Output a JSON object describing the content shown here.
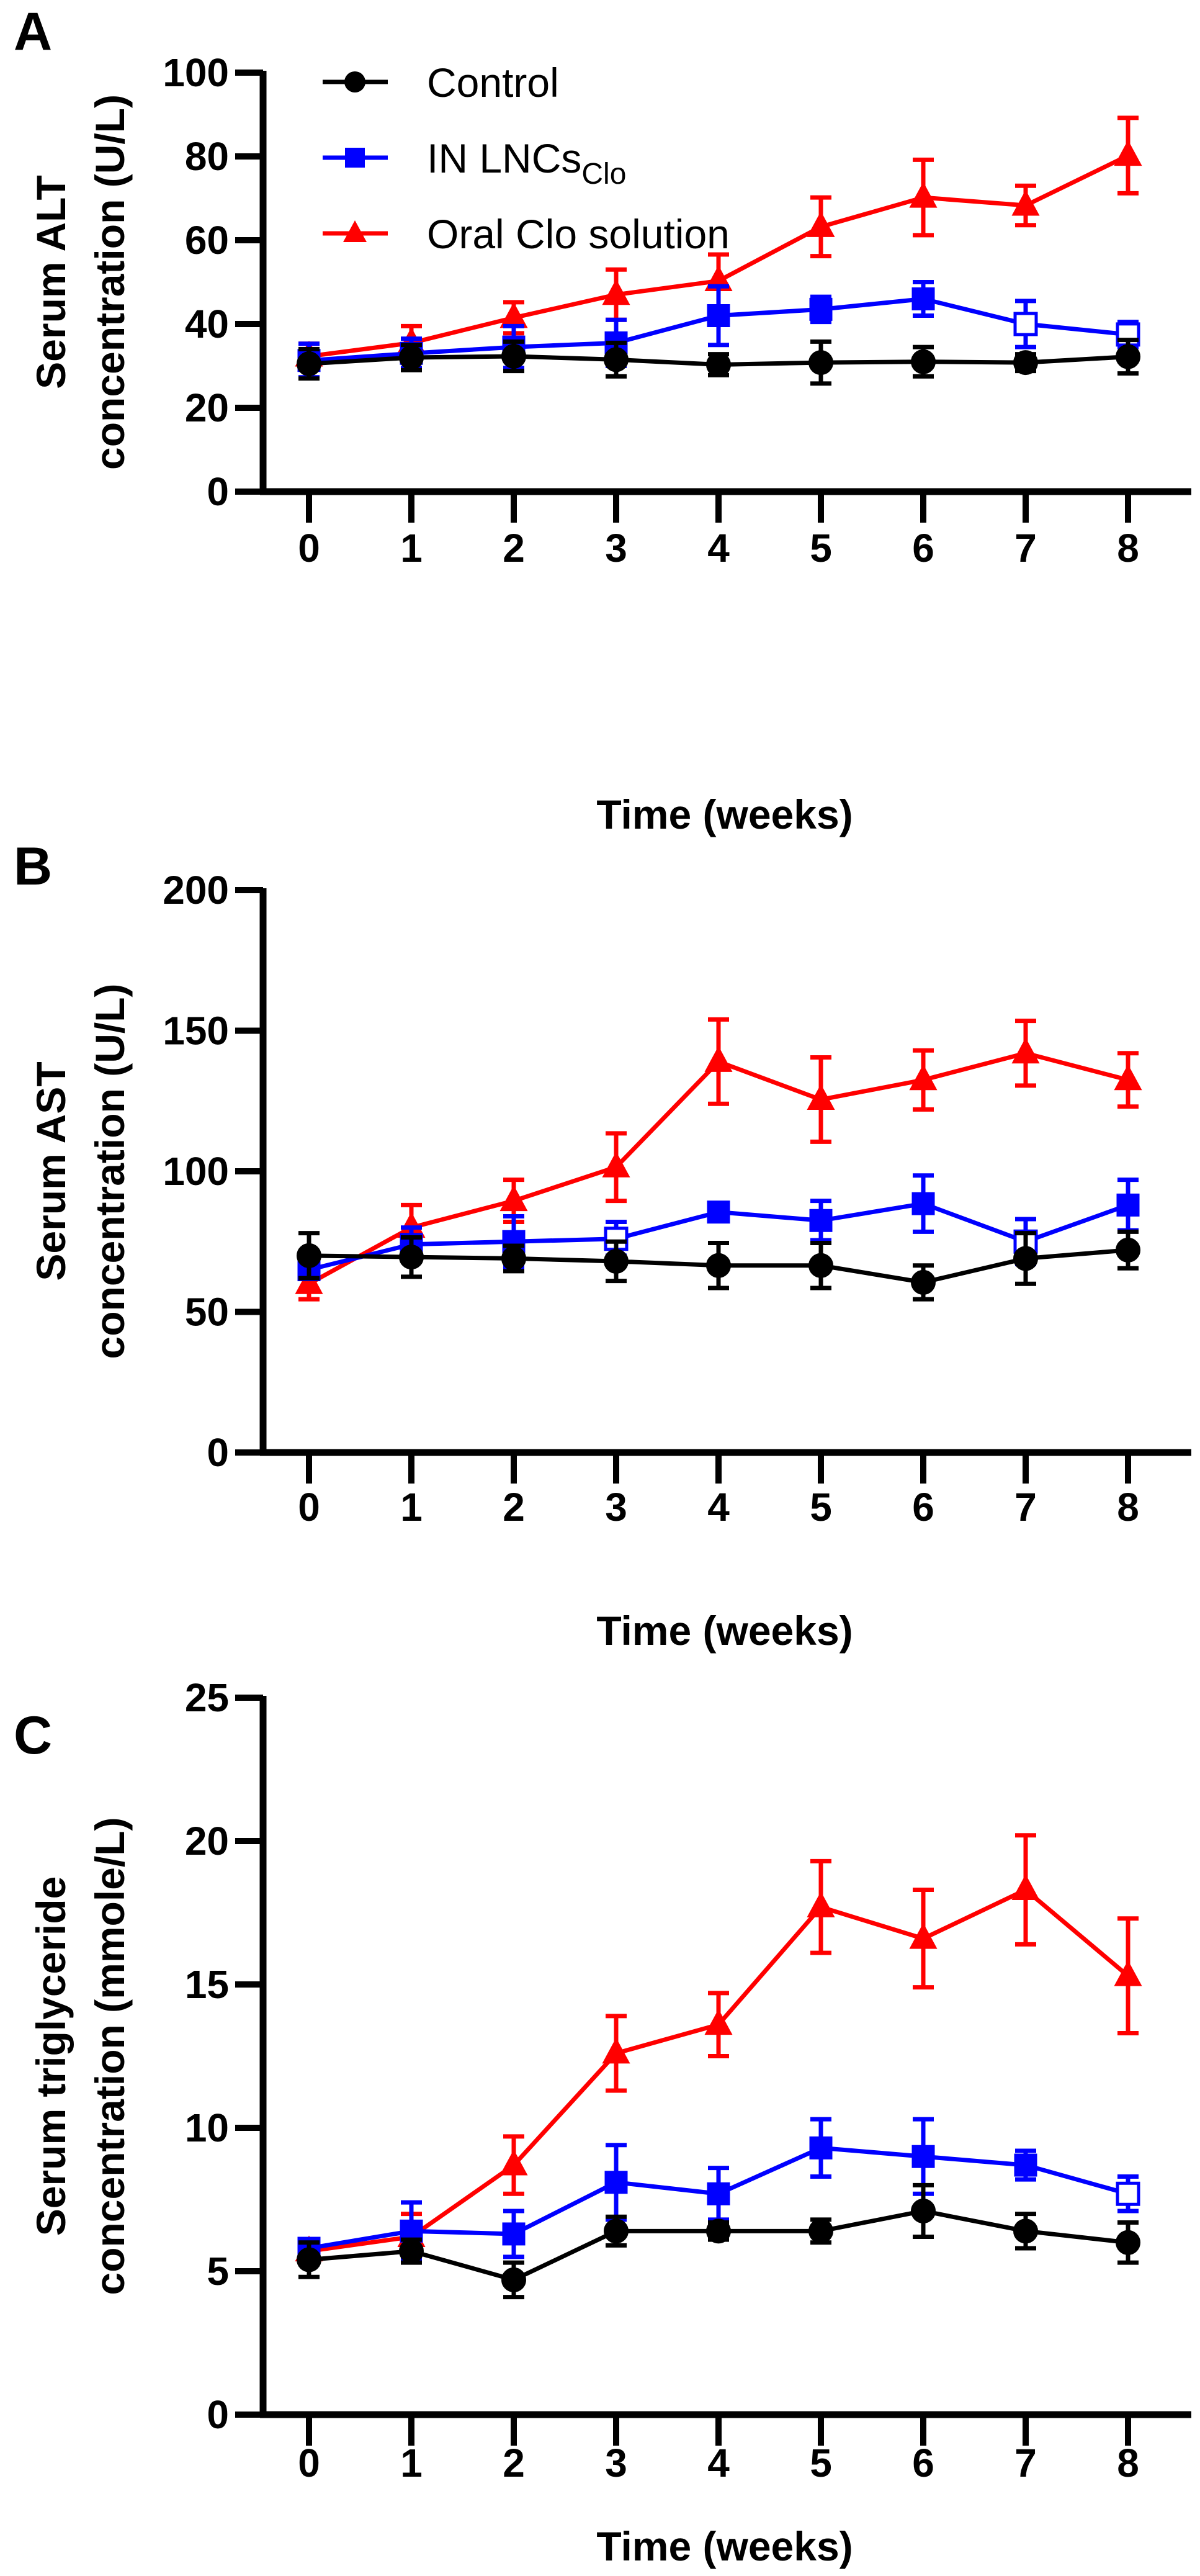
{
  "chart_data": [
    {
      "panel": "A",
      "type": "line",
      "xlabel": "Time (weeks)",
      "ylabel_lines": [
        "Serum ALT",
        "concentration (U/L)"
      ],
      "x": [
        0,
        1,
        2,
        3,
        4,
        5,
        6,
        7,
        8
      ],
      "ylim": [
        0,
        100
      ],
      "yticks": [
        0,
        20,
        40,
        60,
        80,
        100
      ],
      "legend_placement": "top-left",
      "series": [
        {
          "name": "Control",
          "color": "#000000",
          "marker": "circle",
          "values": [
            30.5,
            32,
            32.3,
            31.5,
            30.3,
            30.8,
            31,
            30.8,
            32.2
          ],
          "errors": [
            3.5,
            3,
            3.5,
            4,
            2.5,
            5,
            3.5,
            2,
            4
          ],
          "open": []
        },
        {
          "name": "IN LNCs",
          "name_sub": "Clo",
          "color": "#0000ff",
          "marker": "square",
          "values": [
            31.3,
            33,
            34.5,
            35.5,
            42,
            43.5,
            46,
            40,
            37.5
          ],
          "errors": [
            4,
            3.5,
            5,
            5.5,
            7,
            3,
            4,
            5.5,
            3
          ],
          "open": [
            7,
            8
          ]
        },
        {
          "name": "Oral Clo solution",
          "color": "#ff0000",
          "marker": "triangle",
          "values": [
            32.3,
            35.5,
            41.5,
            47,
            50.3,
            63.2,
            70.2,
            68.3,
            80.2
          ],
          "errors": [
            3,
            4,
            3.7,
            6,
            6.3,
            7,
            9,
            4.7,
            9
          ],
          "open": []
        }
      ]
    },
    {
      "panel": "B",
      "type": "line",
      "xlabel": "Time (weeks)",
      "ylabel_lines": [
        "Serum AST",
        "concentration (U/L)"
      ],
      "x": [
        0,
        1,
        2,
        3,
        4,
        5,
        6,
        7,
        8
      ],
      "ylim": [
        0,
        200
      ],
      "yticks": [
        0,
        50,
        100,
        150,
        200
      ],
      "series": [
        {
          "name": "Control",
          "color": "#000000",
          "marker": "circle",
          "values": [
            70,
            69.5,
            69,
            68,
            66.5,
            66.5,
            60.5,
            69,
            72
          ],
          "errors": [
            8,
            7,
            4.5,
            7,
            8,
            8,
            6,
            9,
            6.5
          ],
          "open": []
        },
        {
          "name": "IN LNCs Clo",
          "color": "#0000ff",
          "marker": "square",
          "values": [
            65,
            74,
            75,
            76,
            85.5,
            82.5,
            88.5,
            75,
            88
          ],
          "errors": [
            3,
            6,
            9,
            6,
            2,
            7,
            10,
            8,
            9
          ],
          "open": [
            3,
            7
          ]
        },
        {
          "name": "Oral Clo solution",
          "color": "#ff0000",
          "marker": "triangle",
          "values": [
            60,
            80,
            89.5,
            101.5,
            139,
            125.5,
            132.5,
            142,
            132.5
          ],
          "errors": [
            5.5,
            8,
            7.5,
            12,
            15,
            15,
            10.5,
            11.5,
            9.5
          ],
          "open": []
        }
      ]
    },
    {
      "panel": "C",
      "type": "line",
      "xlabel": "Time (weeks)",
      "ylabel_lines": [
        "Serum triglyceride",
        "concentration (mmole/L)"
      ],
      "x": [
        0,
        1,
        2,
        3,
        4,
        5,
        6,
        7,
        8
      ],
      "ylim": [
        0,
        25
      ],
      "yticks": [
        0,
        5,
        10,
        15,
        20,
        25
      ],
      "series": [
        {
          "name": "Control",
          "color": "#000000",
          "marker": "circle",
          "values": [
            5.4,
            5.7,
            4.7,
            6.4,
            6.4,
            6.4,
            7.1,
            6.4,
            6.0
          ],
          "errors": [
            0.6,
            0.4,
            0.6,
            0.5,
            0.3,
            0.4,
            0.9,
            0.6,
            0.7
          ],
          "open": []
        },
        {
          "name": "IN LNCs Clo",
          "color": "#0000ff",
          "marker": "square",
          "values": [
            5.8,
            6.4,
            6.3,
            8.1,
            7.7,
            9.3,
            9.0,
            8.7,
            7.7
          ],
          "errors": [
            0.3,
            1.0,
            0.8,
            1.3,
            0.9,
            1.0,
            1.3,
            0.5,
            0.6
          ],
          "open": [
            8
          ]
        },
        {
          "name": "Oral Clo solution",
          "color": "#ff0000",
          "marker": "triangle",
          "values": [
            5.7,
            6.2,
            8.7,
            12.6,
            13.6,
            17.7,
            16.6,
            18.3,
            15.3
          ],
          "errors": [
            0.2,
            0.8,
            1.0,
            1.3,
            1.1,
            1.6,
            1.7,
            1.9,
            2.0
          ],
          "open": []
        }
      ]
    }
  ]
}
